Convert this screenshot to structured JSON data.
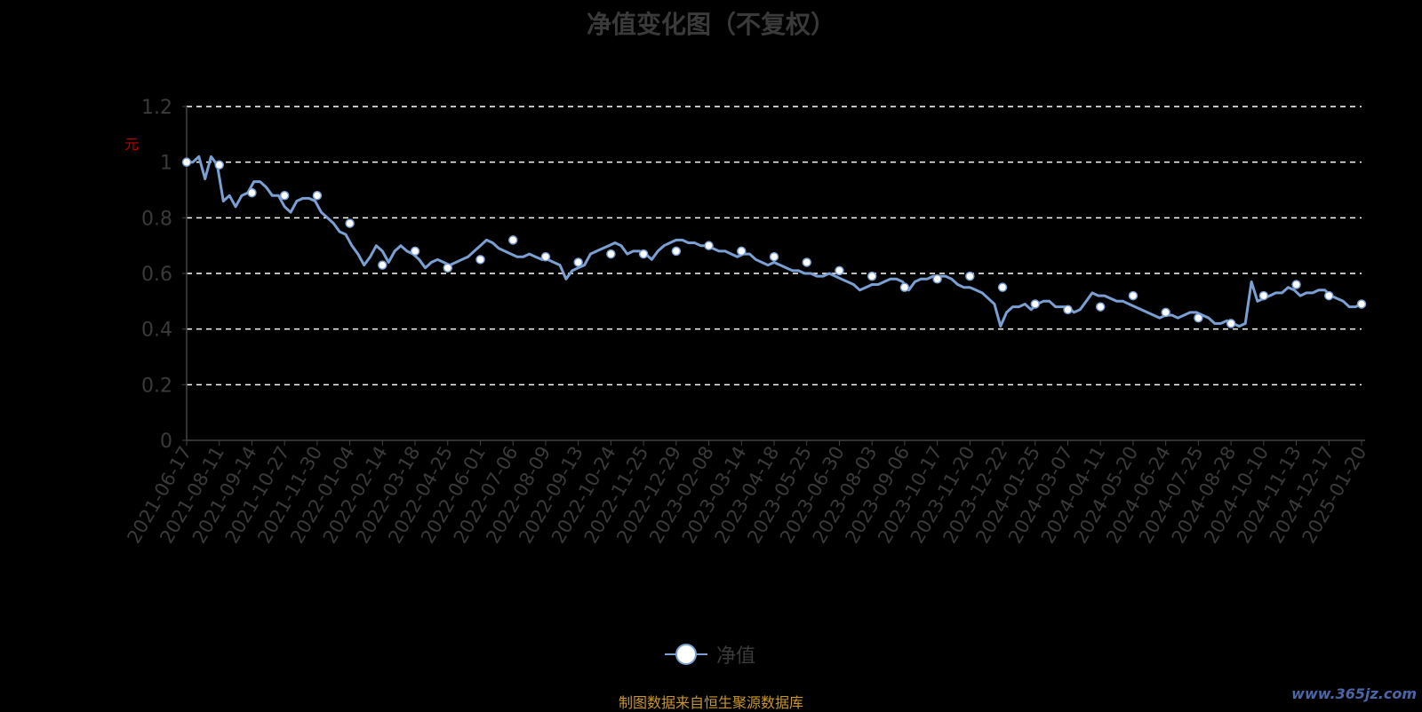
{
  "chart_data": {
    "type": "line",
    "title": "净值变化图（不复权）",
    "ylabel": "元",
    "ylim": [
      0,
      1.2
    ],
    "yticks": [
      "1.2",
      "1",
      "0.8",
      "0.6",
      "0.4",
      "0.2",
      "0"
    ],
    "grid": true,
    "legend_position": "bottom-center",
    "x_tick_labels": [
      "2021-06-17",
      "2021-08-11",
      "2021-09-14",
      "2021-10-27",
      "2021-11-30",
      "2022-01-04",
      "2022-02-14",
      "2022-03-18",
      "2022-04-25",
      "2022-06-01",
      "2022-07-06",
      "2022-08-09",
      "2022-09-13",
      "2022-10-24",
      "2022-11-25",
      "2022-12-29",
      "2023-02-08",
      "2023-03-14",
      "2023-04-18",
      "2023-05-25",
      "2023-06-30",
      "2023-08-03",
      "2023-09-06",
      "2023-10-17",
      "2023-11-20",
      "2023-12-22",
      "2024-01-25",
      "2024-03-07",
      "2024-04-11",
      "2024-05-20",
      "2024-06-24",
      "2024-07-25",
      "2024-08-28",
      "2024-10-10",
      "2024-11-13",
      "2024-12-17",
      "2025-01-20"
    ],
    "series": [
      {
        "name": "净值",
        "color": "#7a9fd3",
        "marker_values": [
          1.0,
          0.99,
          0.89,
          0.88,
          0.88,
          0.78,
          0.63,
          0.68,
          0.62,
          0.65,
          0.72,
          0.66,
          0.64,
          0.67,
          0.67,
          0.68,
          0.7,
          0.68,
          0.66,
          0.64,
          0.61,
          0.59,
          0.55,
          0.58,
          0.59,
          0.55,
          0.49,
          0.47,
          0.48,
          0.52,
          0.46,
          0.44,
          0.42,
          0.52,
          0.56,
          0.52,
          0.49
        ],
        "values": [
          1.0,
          1.0,
          1.02,
          0.94,
          1.02,
          0.99,
          0.86,
          0.88,
          0.84,
          0.88,
          0.89,
          0.93,
          0.93,
          0.91,
          0.88,
          0.88,
          0.84,
          0.82,
          0.86,
          0.87,
          0.87,
          0.86,
          0.82,
          0.8,
          0.78,
          0.75,
          0.74,
          0.7,
          0.67,
          0.63,
          0.66,
          0.7,
          0.68,
          0.64,
          0.68,
          0.7,
          0.68,
          0.67,
          0.65,
          0.62,
          0.64,
          0.65,
          0.64,
          0.63,
          0.64,
          0.65,
          0.66,
          0.68,
          0.7,
          0.72,
          0.71,
          0.69,
          0.68,
          0.67,
          0.66,
          0.66,
          0.67,
          0.66,
          0.65,
          0.65,
          0.64,
          0.63,
          0.58,
          0.61,
          0.62,
          0.63,
          0.67,
          0.68,
          0.69,
          0.7,
          0.71,
          0.7,
          0.67,
          0.68,
          0.68,
          0.67,
          0.65,
          0.68,
          0.7,
          0.71,
          0.72,
          0.72,
          0.71,
          0.71,
          0.7,
          0.7,
          0.69,
          0.68,
          0.68,
          0.67,
          0.66,
          0.67,
          0.67,
          0.65,
          0.64,
          0.63,
          0.64,
          0.63,
          0.62,
          0.61,
          0.61,
          0.6,
          0.6,
          0.59,
          0.59,
          0.6,
          0.59,
          0.58,
          0.57,
          0.56,
          0.54,
          0.55,
          0.56,
          0.56,
          0.57,
          0.58,
          0.58,
          0.57,
          0.54,
          0.57,
          0.58,
          0.58,
          0.59,
          0.59,
          0.59,
          0.58,
          0.56,
          0.55,
          0.55,
          0.54,
          0.53,
          0.51,
          0.49,
          0.41,
          0.46,
          0.48,
          0.48,
          0.49,
          0.47,
          0.49,
          0.5,
          0.5,
          0.48,
          0.48,
          0.48,
          0.46,
          0.47,
          0.5,
          0.53,
          0.52,
          0.52,
          0.51,
          0.5,
          0.5,
          0.49,
          0.48,
          0.47,
          0.46,
          0.45,
          0.44,
          0.45,
          0.45,
          0.44,
          0.45,
          0.46,
          0.46,
          0.45,
          0.44,
          0.42,
          0.42,
          0.43,
          0.42,
          0.41,
          0.42,
          0.57,
          0.5,
          0.51,
          0.52,
          0.53,
          0.53,
          0.55,
          0.54,
          0.52,
          0.53,
          0.53,
          0.54,
          0.54,
          0.52,
          0.51,
          0.5,
          0.48,
          0.48,
          0.49
        ]
      }
    ]
  },
  "legend": {
    "label": "净值"
  },
  "footer": {
    "source": "制图数据来自恒生聚源数据库",
    "watermark": "www.365jz.com"
  }
}
